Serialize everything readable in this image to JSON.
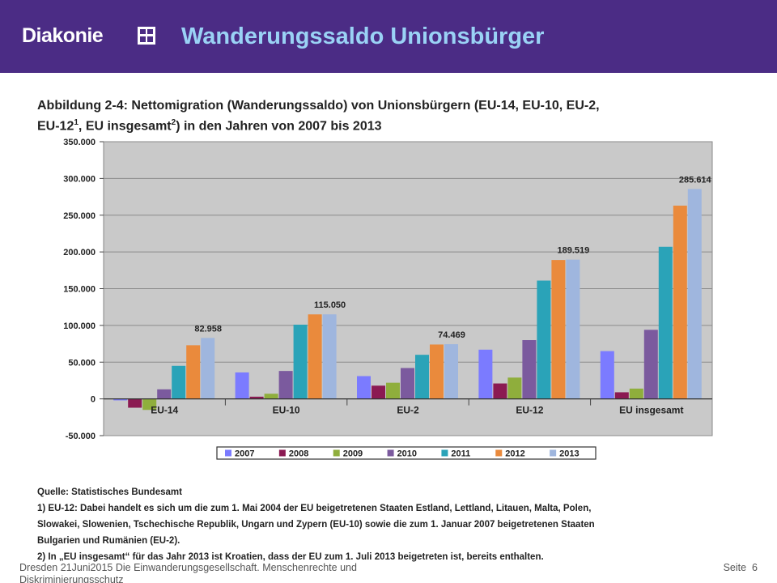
{
  "header": {
    "logo_text": "Diakonie",
    "logo_icon": "diakonie-cross-icon",
    "title": "Wanderungssaldo Unionsbürger",
    "background": "#4b2c85",
    "title_color": "#9ad2f5"
  },
  "figure": {
    "title_line1": "Abbildung 2-4: Nettomigration (Wanderungssaldo) von Unionsbürgern (EU-14, EU-10, EU-2,",
    "title_line2_pre": "EU-12",
    "title_line2_sup1": "1",
    "title_line2_mid": ", EU insgesamt",
    "title_line2_sup2": "2",
    "title_line2_post": ") in den Jahren von 2007 bis 2013"
  },
  "chart_data": {
    "type": "bar",
    "categories": [
      "EU-14",
      "EU-10",
      "EU-2",
      "EU-12",
      "EU insgesamt"
    ],
    "ylim": [
      -50000,
      350000
    ],
    "yticks": [
      -50000,
      0,
      50000,
      100000,
      150000,
      200000,
      250000,
      300000,
      350000
    ],
    "ytick_labels": [
      "-50.000",
      "0",
      "50.000",
      "100.000",
      "150.000",
      "200.000",
      "250.000",
      "300.000",
      "350.000"
    ],
    "grid": true,
    "legend_position": "bottom",
    "series": [
      {
        "name": "2007",
        "color": "#7b7bff",
        "values": [
          -2000,
          36000,
          31000,
          67000,
          65000
        ]
      },
      {
        "name": "2008",
        "color": "#8b1a52",
        "values": [
          -12000,
          3000,
          18000,
          21000,
          9000
        ]
      },
      {
        "name": "2009",
        "color": "#8fae3c",
        "values": [
          -15000,
          7000,
          22000,
          29000,
          14000
        ]
      },
      {
        "name": "2010",
        "color": "#7b5a9e",
        "values": [
          13000,
          38000,
          42000,
          80000,
          94000
        ]
      },
      {
        "name": "2011",
        "color": "#2aa3b8",
        "values": [
          45000,
          101000,
          60000,
          161000,
          207000
        ]
      },
      {
        "name": "2012",
        "color": "#ea8a3c",
        "values": [
          73000,
          115000,
          74000,
          189000,
          263000
        ]
      },
      {
        "name": "2013",
        "color": "#9fb6de",
        "values": [
          82958,
          115050,
          74469,
          189519,
          285614
        ]
      }
    ],
    "annotations": [
      "82.958",
      "115.050",
      "74.469",
      "189.519",
      "285.614"
    ],
    "plot_background": "#c9c9c9"
  },
  "notes": {
    "source": "Quelle: Statistisches Bundesamt",
    "note1_line1": "1) EU-12: Dabei handelt es sich um die zum 1. Mai 2004 der EU beigetretenen Staaten Estland, Lettland, Litauen, Malta, Polen,",
    "note1_line2": "Slowakei, Slowenien, Tschechische Republik, Ungarn und Zypern (EU-10) sowie die zum 1. Januar 2007 beigetretenen Staaten",
    "note1_line3": "Bulgarien und Rumänien (EU-2).",
    "note2": "2) In „EU insgesamt“ für das Jahr 2013 ist Kroatien, dass der EU zum 1. Juli 2013 beigetreten ist, bereits enthalten."
  },
  "footer": {
    "left": "Dresden 21Juni2015 Die Einwanderungsgesellschaft. Menschenrechte und Diskriminierungsschutz",
    "right_label": "Seite",
    "page_number": "6"
  }
}
